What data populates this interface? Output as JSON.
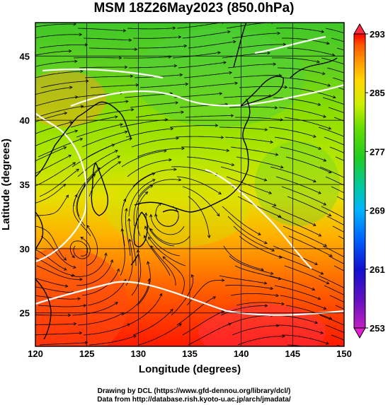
{
  "title": "MSM 18Z26May2023 (850.0hPa)",
  "x_axis": {
    "label": "Longitude (degrees)",
    "range": [
      120,
      150
    ],
    "ticks": [
      120,
      125,
      130,
      135,
      140,
      145,
      150
    ]
  },
  "y_axis": {
    "label": "Latitude  (degrees)",
    "range": [
      22.4,
      47.6
    ],
    "ticks": [
      25,
      30,
      35,
      40,
      45
    ]
  },
  "colorbar": {
    "range": [
      253,
      293
    ],
    "tick_labels": [
      "293",
      "285",
      "277",
      "269",
      "261",
      "253"
    ],
    "colors": [
      "#ff0000",
      "#ff5a00",
      "#ffa000",
      "#ffd800",
      "#ccee00",
      "#66dd00",
      "#22cc22",
      "#00c8a0",
      "#00b4ff",
      "#0060ff",
      "#1010d0",
      "#6010c0",
      "#c020c0"
    ]
  },
  "credits": {
    "line1": "Drawing by DCL (https://www.gfd-dennou.org/library/dcl/)",
    "line2": "Data from http://database.rish.kyoto-u.ac.jp/arch/jmadata/"
  }
}
